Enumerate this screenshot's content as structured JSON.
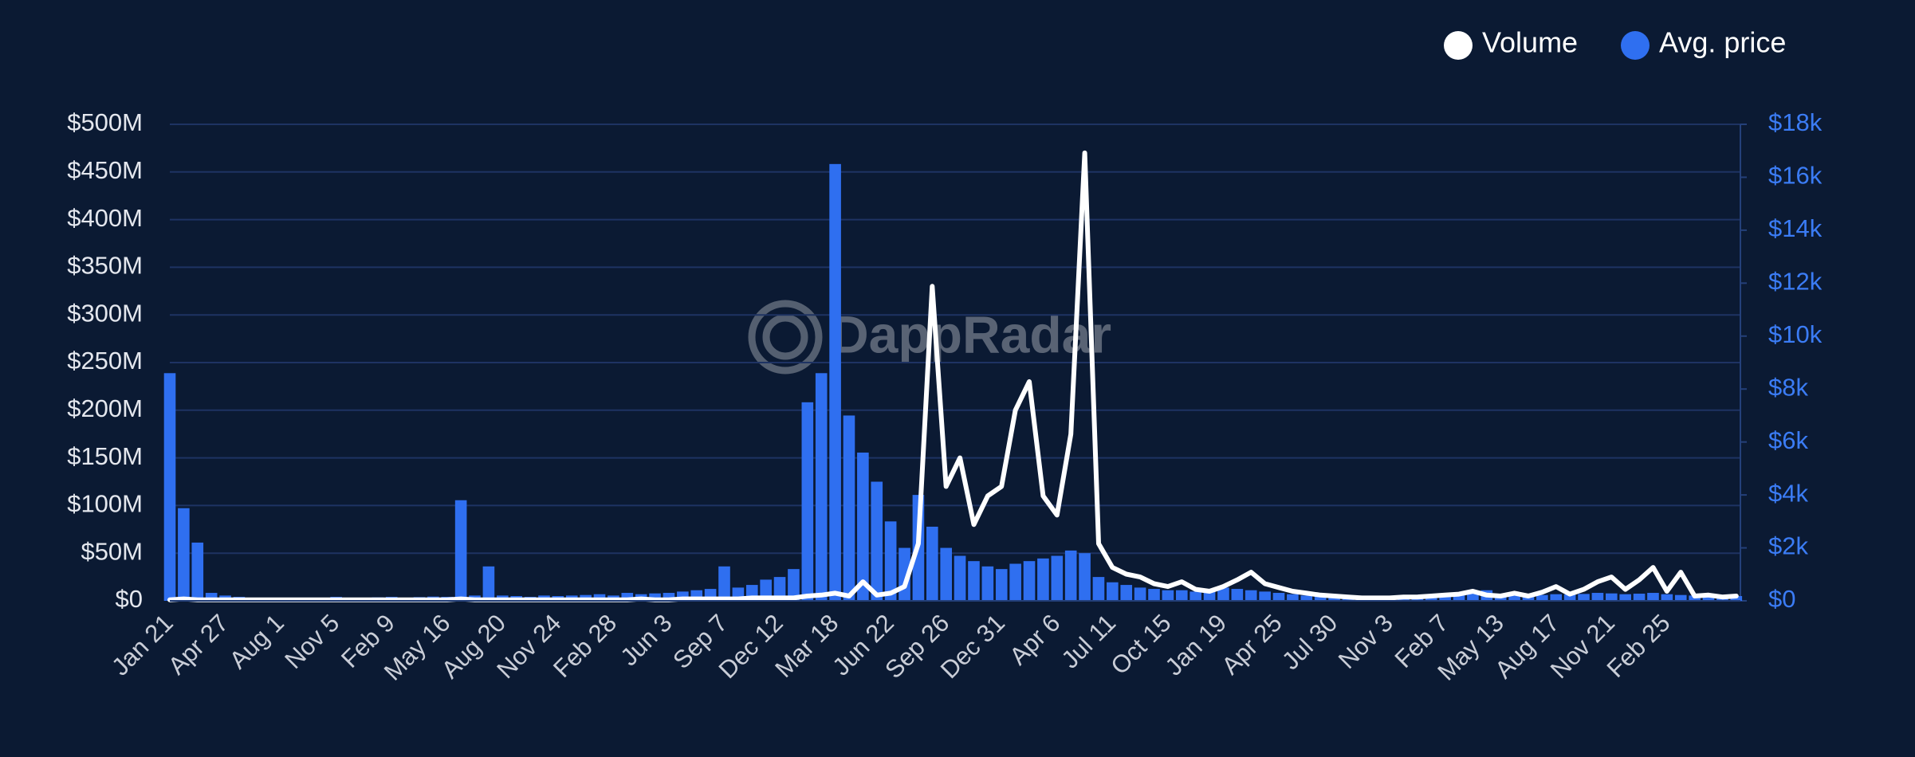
{
  "chart_data": {
    "type": "bar-line",
    "watermark": "DappRadar",
    "legend": "top-right",
    "grid": true,
    "categories": [
      "Jan 21",
      null,
      null,
      null,
      "Apr 27",
      null,
      null,
      null,
      "Aug 1",
      null,
      null,
      null,
      "Nov 5",
      null,
      null,
      null,
      "Feb 9",
      null,
      null,
      null,
      "May 16",
      null,
      null,
      null,
      "Aug 20",
      null,
      null,
      null,
      "Nov 24",
      null,
      null,
      null,
      "Feb 28",
      null,
      null,
      null,
      "Jun 3",
      null,
      null,
      null,
      "Sep 7",
      null,
      null,
      null,
      "Dec 12",
      null,
      null,
      null,
      "Mar 18",
      null,
      null,
      null,
      "Jun 22",
      null,
      null,
      null,
      "Sep 26",
      null,
      null,
      null,
      "Dec 31",
      null,
      null,
      null,
      "Apr 6",
      null,
      null,
      null,
      "Jul 11",
      null,
      null,
      null,
      "Oct 15",
      null,
      null,
      null,
      "Jan 19",
      null,
      null,
      null,
      "Apr 25",
      null,
      null,
      null,
      "Jul 30",
      null,
      null,
      null,
      "Nov 3",
      null,
      null,
      null,
      "Feb 7",
      null,
      null,
      null,
      "May 13",
      null,
      null,
      null,
      "Aug 17",
      null,
      null,
      null,
      "Nov 21",
      null,
      null,
      null,
      "Feb 25",
      null,
      null,
      null,
      null,
      null
    ],
    "ylim": [
      0,
      500000000
    ],
    "yticks": [
      {
        "value": 0,
        "label": "$0"
      },
      {
        "value": 50000000,
        "label": "$50M"
      },
      {
        "value": 100000000,
        "label": "$100M"
      },
      {
        "value": 150000000,
        "label": "$150M"
      },
      {
        "value": 200000000,
        "label": "$200M"
      },
      {
        "value": 250000000,
        "label": "$250M"
      },
      {
        "value": 300000000,
        "label": "$300M"
      },
      {
        "value": 350000000,
        "label": "$350M"
      },
      {
        "value": 400000000,
        "label": "$400M"
      },
      {
        "value": 450000000,
        "label": "$450M"
      },
      {
        "value": 500000000,
        "label": "$500M"
      }
    ],
    "y2lim": [
      0,
      18000
    ],
    "y2ticks": [
      {
        "value": 0,
        "label": "$0"
      },
      {
        "value": 2000,
        "label": "$2k"
      },
      {
        "value": 4000,
        "label": "$4k"
      },
      {
        "value": 6000,
        "label": "$6k"
      },
      {
        "value": 8000,
        "label": "$8k"
      },
      {
        "value": 10000,
        "label": "$10k"
      },
      {
        "value": 12000,
        "label": "$12k"
      },
      {
        "value": 14000,
        "label": "$14k"
      },
      {
        "value": 16000,
        "label": "$16k"
      },
      {
        "value": 18000,
        "label": "$18k"
      }
    ],
    "series": [
      {
        "name": "Volume",
        "color": "#ffffff",
        "kind": "line",
        "values": [
          1000000,
          2000000,
          1000000,
          1000000,
          1000000,
          1000000,
          1000000,
          1000000,
          1000000,
          1000000,
          1000000,
          1000000,
          1000000,
          1000000,
          1000000,
          1000000,
          1000000,
          1000000,
          1000000,
          1000000,
          1000000,
          2000000,
          1000000,
          1000000,
          1000000,
          1000000,
          1000000,
          1000000,
          1000000,
          1000000,
          1000000,
          1000000,
          1000000,
          1000000,
          2000000,
          1000000,
          1000000,
          2000000,
          2000000,
          2000000,
          2000000,
          2000000,
          3000000,
          3000000,
          3000000,
          3000000,
          5000000,
          6000000,
          8000000,
          5000000,
          20000000,
          6000000,
          8000000,
          15000000,
          60000000,
          330000000,
          120000000,
          150000000,
          80000000,
          110000000,
          120000000,
          200000000,
          230000000,
          110000000,
          90000000,
          175000000,
          470000000,
          60000000,
          35000000,
          28000000,
          25000000,
          18000000,
          15000000,
          20000000,
          12000000,
          10000000,
          15000000,
          22000000,
          30000000,
          18000000,
          14000000,
          10000000,
          8000000,
          6000000,
          5000000,
          4000000,
          3000000,
          3000000,
          3000000,
          4000000,
          4000000,
          5000000,
          6000000,
          7000000,
          10000000,
          6000000,
          5000000,
          8000000,
          5000000,
          9000000,
          15000000,
          7000000,
          12000000,
          20000000,
          25000000,
          12000000,
          22000000,
          35000000,
          10000000,
          30000000,
          5000000,
          6000000,
          4000000,
          5000000
        ]
      },
      {
        "name": "Avg. price",
        "color": "#2f6ff0",
        "kind": "bar",
        "axis": "y2",
        "values": [
          8600,
          3500,
          2200,
          300,
          200,
          150,
          120,
          100,
          100,
          120,
          100,
          120,
          150,
          100,
          120,
          130,
          150,
          120,
          140,
          160,
          150,
          3800,
          200,
          1300,
          200,
          180,
          150,
          200,
          180,
          200,
          220,
          250,
          200,
          300,
          250,
          280,
          300,
          350,
          400,
          450,
          1300,
          500,
          600,
          800,
          900,
          1200,
          7500,
          8600,
          16500,
          7000,
          5600,
          4500,
          3000,
          2000,
          4000,
          2800,
          2000,
          1700,
          1500,
          1300,
          1200,
          1400,
          1500,
          1600,
          1700,
          1900,
          1800,
          900,
          700,
          600,
          500,
          450,
          400,
          400,
          350,
          400,
          500,
          450,
          400,
          350,
          300,
          250,
          200,
          200,
          180,
          150,
          150,
          150,
          160,
          170,
          180,
          200,
          220,
          250,
          300,
          400,
          250,
          220,
          200,
          220,
          250,
          240,
          260,
          300,
          280,
          250,
          270,
          300,
          250,
          220,
          200,
          200,
          180,
          180
        ]
      }
    ]
  }
}
